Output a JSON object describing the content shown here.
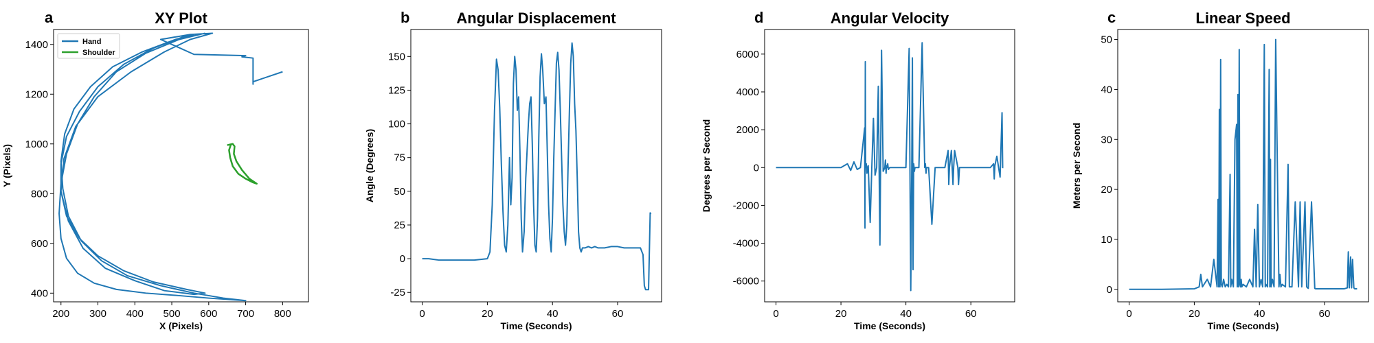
{
  "colors": {
    "hand": "#1f77b4",
    "shoulder": "#2ca02c",
    "axes": "#000000"
  },
  "chart_data": [
    {
      "type": "line",
      "panel_letter": "a",
      "title": "XY Plot",
      "xlabel": "X (Pixels)",
      "ylabel": "Y (Pixels)",
      "xlim": [
        180,
        870
      ],
      "ylim": [
        365,
        1460
      ],
      "xticks": [
        200,
        300,
        400,
        500,
        600,
        700,
        800
      ],
      "yticks": [
        400,
        600,
        800,
        1000,
        1200,
        1400
      ],
      "grid": false,
      "legend": "top-left",
      "series": [
        {
          "name": "Hand",
          "x": [
            590,
            520,
            430,
            350,
            290,
            245,
            215,
            200,
            195,
            200,
            215,
            245,
            290,
            350,
            430,
            520,
            600,
            700,
            640,
            560,
            470,
            380,
            310,
            255,
            220,
            205,
            200,
            210,
            235,
            280,
            340,
            420,
            510,
            560,
            530,
            450,
            370,
            300,
            250,
            215,
            200,
            200,
            215,
            250,
            300,
            370,
            450,
            540,
            590,
            560,
            480,
            400,
            320,
            260,
            220,
            200,
            208,
            240,
            300,
            390,
            480,
            550,
            610,
            550,
            470,
            560,
            700,
            690,
            720,
            720,
            720,
            720,
            800
          ],
          "y": [
            1445,
            1420,
            1365,
            1290,
            1190,
            1080,
            960,
            840,
            720,
            620,
            540,
            480,
            440,
            415,
            400,
            390,
            380,
            370,
            380,
            400,
            430,
            470,
            530,
            610,
            710,
            820,
            930,
            1040,
            1140,
            1230,
            1310,
            1370,
            1420,
            1440,
            1430,
            1385,
            1320,
            1230,
            1130,
            1030,
            920,
            810,
            710,
            620,
            550,
            490,
            445,
            415,
            400,
            395,
            410,
            450,
            500,
            580,
            690,
            810,
            940,
            1070,
            1190,
            1290,
            1370,
            1420,
            1445,
            1440,
            1420,
            1360,
            1355,
            1350,
            1345,
            1250,
            1240,
            1250,
            1290
          ]
        },
        {
          "name": "Shoulder",
          "x": [
            650,
            665,
            670,
            668,
            675,
            690,
            710,
            730,
            720,
            700,
            680,
            665,
            658,
            655,
            660,
            665
          ],
          "y": [
            995,
            1000,
            990,
            960,
            930,
            895,
            860,
            840,
            845,
            860,
            880,
            910,
            945,
            975,
            998,
            1000
          ]
        }
      ]
    },
    {
      "type": "line",
      "panel_letter": "b",
      "title": "Angular Displacement",
      "xlabel": "Time (Seconds)",
      "ylabel": "Angle (Degrees)",
      "xlim": [
        -3.5,
        73.5
      ],
      "ylim": [
        -32,
        170
      ],
      "xticks": [
        0,
        20,
        40,
        60
      ],
      "yticks": [
        -25,
        0,
        25,
        50,
        75,
        100,
        125,
        150
      ],
      "grid": false,
      "series": [
        {
          "x": [
            0,
            2,
            5,
            8,
            12,
            16,
            20,
            20.8,
            21.5,
            22.2,
            22.8,
            23.3,
            23.8,
            24.3,
            24.8,
            25.3,
            25.8,
            26.3,
            26.8,
            27.2,
            27.6,
            28.0,
            28.4,
            28.8,
            29.2,
            29.6,
            30.0,
            30.4,
            30.8,
            31.3,
            31.8,
            32.2,
            32.6,
            33.0,
            33.4,
            33.8,
            34.2,
            34.6,
            35.0,
            35.4,
            35.8,
            36.2,
            36.6,
            37.0,
            37.5,
            38.0,
            38.4,
            38.8,
            39.2,
            39.6,
            40.0,
            40.4,
            40.8,
            41.2,
            41.6,
            42.0,
            42.4,
            42.8,
            43.2,
            43.6,
            44.0,
            44.4,
            44.8,
            45.2,
            45.6,
            46.0,
            46.4,
            46.8,
            47.2,
            47.6,
            48.0,
            48.4,
            48.8,
            49.2,
            49.6,
            50.0,
            51.0,
            52.0,
            53.0,
            54.0,
            56.0,
            58.0,
            60.0,
            62.0,
            64.0,
            66.0,
            67.0,
            67.8,
            68.2,
            68.6,
            69.0,
            69.5,
            70.0,
            70.2
          ],
          "y": [
            0,
            0,
            -1,
            -1,
            -1,
            -1,
            0,
            5,
            40,
            110,
            148,
            140,
            112,
            70,
            35,
            10,
            5,
            25,
            75,
            40,
            60,
            130,
            150,
            140,
            110,
            120,
            80,
            30,
            5,
            20,
            60,
            80,
            100,
            115,
            120,
            85,
            40,
            10,
            5,
            30,
            90,
            135,
            152,
            140,
            115,
            120,
            80,
            40,
            15,
            5,
            30,
            75,
            110,
            145,
            153,
            140,
            110,
            75,
            40,
            20,
            10,
            25,
            70,
            110,
            145,
            160,
            150,
            115,
            95,
            60,
            20,
            8,
            5,
            8,
            8,
            8,
            9,
            8,
            9,
            8,
            8,
            9,
            9,
            8,
            8,
            8,
            8,
            3,
            -20,
            -23,
            -23,
            -23,
            34,
            33
          ]
        }
      ]
    },
    {
      "type": "line",
      "panel_letter": "d",
      "title": "Angular Velocity",
      "xlabel": "Time (Seconds)",
      "ylabel": "Degrees per Second",
      "xlim": [
        -3.5,
        73.5
      ],
      "ylim": [
        -7100,
        7300
      ],
      "xticks": [
        0,
        20,
        40,
        60
      ],
      "yticks": [
        -6000,
        -4000,
        -2000,
        0,
        2000,
        4000,
        6000
      ],
      "grid": false,
      "series": [
        {
          "x": [
            0,
            10,
            20,
            22,
            23,
            24,
            25,
            26,
            27.3,
            27.4,
            27.5,
            27.6,
            27.8,
            28.0,
            28.2,
            28.4,
            29.0,
            29.5,
            30.0,
            30.5,
            31.0,
            31.5,
            32.0,
            32.5,
            33.0,
            33.5,
            33.7,
            33.9,
            34.0,
            34.2,
            34.4,
            34.6,
            35.0,
            36.0,
            37.0,
            38.0,
            39.0,
            40.0,
            41.0,
            41.5,
            41.8,
            42.0,
            42.2,
            42.4,
            42.6,
            42.8,
            43.2,
            44.0,
            45.0,
            45.8,
            46.0,
            46.2,
            46.4,
            47.0,
            48.0,
            49.0,
            50.0,
            51.0,
            52.0,
            53.0,
            53.2,
            53.4,
            54.0,
            54.5,
            54.7,
            55.0,
            56.0,
            56.2,
            56.5,
            58.0,
            60.0,
            62.0,
            64.0,
            66.0,
            67.0,
            67.2,
            67.4,
            68.0,
            69.0,
            69.6,
            69.8,
            70.0
          ],
          "y": [
            0,
            0,
            0,
            200,
            -150,
            300,
            -100,
            0,
            2100,
            -3200,
            5600,
            0,
            200,
            -300,
            0,
            100,
            -2900,
            0,
            2600,
            -400,
            0,
            4300,
            -4100,
            6200,
            -200,
            0,
            400,
            -300,
            100,
            0,
            200,
            -100,
            0,
            0,
            0,
            0,
            0,
            0,
            6300,
            -6500,
            0,
            5800,
            -5400,
            200,
            -200,
            0,
            0,
            0,
            6600,
            0,
            200,
            -300,
            0,
            0,
            -3000,
            0,
            0,
            0,
            0,
            900,
            -900,
            0,
            900,
            -900,
            0,
            900,
            0,
            -900,
            0,
            0,
            0,
            0,
            0,
            0,
            200,
            -600,
            100,
            600,
            -500,
            2900,
            0,
            0
          ]
        }
      ]
    },
    {
      "type": "line",
      "panel_letter": "c",
      "title": "Linear Speed",
      "xlabel": "Time (Seconds)",
      "ylabel": "Meters per Second",
      "xlim": [
        -3.5,
        73.5
      ],
      "ylim": [
        -2.5,
        52
      ],
      "xticks": [
        0,
        20,
        40,
        60
      ],
      "yticks": [
        0,
        10,
        20,
        30,
        40,
        50
      ],
      "grid": false,
      "series": [
        {
          "x": [
            0,
            10,
            20,
            21.5,
            22.0,
            22.5,
            23.0,
            24.0,
            25.0,
            26.0,
            27.0,
            27.3,
            27.5,
            27.7,
            27.9,
            28.1,
            28.3,
            28.6,
            29.0,
            29.5,
            30.0,
            30.5,
            31.0,
            31.2,
            31.5,
            32.0,
            32.5,
            33.0,
            33.2,
            33.4,
            33.6,
            33.8,
            34.0,
            34.2,
            34.4,
            34.6,
            35.0,
            36.0,
            37.0,
            38.0,
            38.5,
            39.0,
            39.5,
            40.0,
            40.5,
            41.0,
            41.5,
            41.8,
            42.0,
            42.5,
            43.0,
            43.2,
            43.4,
            43.6,
            44.0,
            44.5,
            45.0,
            46.0,
            46.3,
            46.6,
            47.0,
            48.0,
            48.8,
            49.2,
            50.0,
            51.0,
            52.0,
            52.5,
            53.0,
            54.0,
            54.5,
            55.0,
            56.0,
            57.0,
            57.3,
            58.0,
            60.0,
            63.0,
            66.0,
            67.0,
            67.3,
            67.6,
            68.0,
            68.3,
            68.6,
            69.0,
            69.3,
            69.6,
            70.0
          ],
          "y": [
            0,
            0,
            0.1,
            0.5,
            3,
            0.5,
            1,
            2,
            0.5,
            6,
            0.5,
            18,
            0.5,
            36,
            0.5,
            46,
            1,
            0.5,
            2,
            0.5,
            1,
            0.5,
            23,
            0.5,
            2,
            0.5,
            30,
            33,
            0.5,
            39,
            0.5,
            48,
            1,
            0.5,
            2,
            0.5,
            1,
            0.5,
            2,
            0.5,
            12,
            0.5,
            17,
            0.5,
            2,
            0.5,
            49,
            0.5,
            1,
            0.5,
            44,
            0.5,
            26,
            0.5,
            2,
            0.5,
            50,
            0.5,
            3,
            0.5,
            1,
            0.5,
            25,
            0.5,
            0.5,
            17.5,
            0.5,
            17.5,
            0.5,
            17.5,
            0.5,
            0.2,
            17.5,
            0.2,
            0.1,
            0.1,
            0.1,
            0.1,
            0.1,
            0.3,
            7.5,
            0.3,
            6.5,
            0.3,
            6,
            0.3,
            0.1,
            0.1,
            0.1
          ]
        }
      ]
    }
  ]
}
